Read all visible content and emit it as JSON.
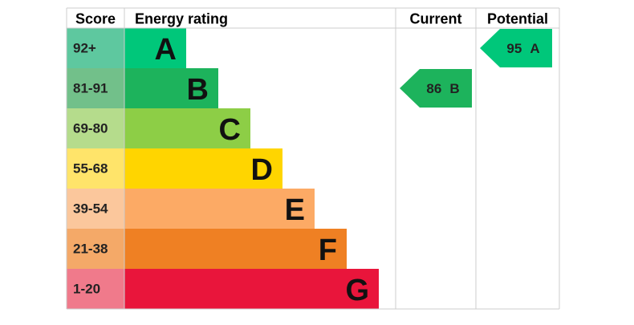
{
  "header": {
    "score": "Score",
    "rating": "Energy rating",
    "current": "Current",
    "potential": "Potential"
  },
  "bands": [
    {
      "score": "92+",
      "letter": "A",
      "color": "#00c77a",
      "light": "#5ec89f"
    },
    {
      "score": "81-91",
      "letter": "B",
      "color": "#1db35c",
      "light": "#72c08a"
    },
    {
      "score": "69-80",
      "letter": "C",
      "color": "#8dce46",
      "light": "#b5dc8c"
    },
    {
      "score": "55-68",
      "letter": "D",
      "color": "#ffd500",
      "light": "#ffe46a"
    },
    {
      "score": "39-54",
      "letter": "E",
      "color": "#fcaa65",
      "light": "#fbc79c"
    },
    {
      "score": "21-38",
      "letter": "F",
      "color": "#ef8023",
      "light": "#f4a968"
    },
    {
      "score": "1-20",
      "letter": "G",
      "color": "#e9153b",
      "light": "#f07a8b"
    }
  ],
  "current": {
    "value": 86,
    "band": "B"
  },
  "potential": {
    "value": 95,
    "band": "A"
  }
}
